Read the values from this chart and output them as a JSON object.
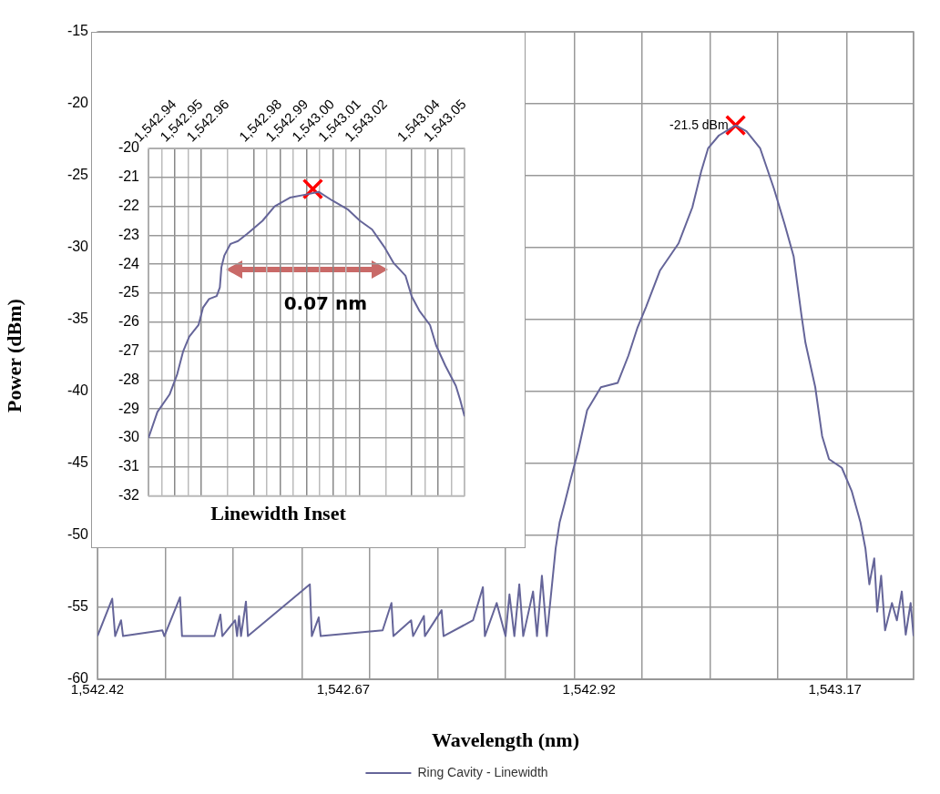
{
  "chart_data": [
    {
      "type": "line",
      "xlabel": "Wavelength (nm)",
      "ylabel": "Power (dBm)",
      "legend": "bottom",
      "grid": true,
      "marker": "none",
      "xlim": [
        1542.42,
        1543.25
      ],
      "xticks": [
        {
          "value": 1542.42,
          "label": "1,542.42"
        },
        {
          "value": 1542.489,
          "label": null
        },
        {
          "value": 1542.558,
          "label": null
        },
        {
          "value": 1542.628,
          "label": null
        },
        {
          "value": 1542.67,
          "label": "1,542.67"
        },
        {
          "value": 1542.697,
          "label": null
        },
        {
          "value": 1542.766,
          "label": null
        },
        {
          "value": 1542.835,
          "label": null
        },
        {
          "value": 1542.905,
          "label": null
        },
        {
          "value": 1542.92,
          "label": "1,542.92"
        },
        {
          "value": 1542.974,
          "label": null
        },
        {
          "value": 1543.043,
          "label": null
        },
        {
          "value": 1543.112,
          "label": null
        },
        {
          "value": 1543.17,
          "label": "1,543.17"
        },
        {
          "value": 1543.182,
          "label": null
        },
        {
          "value": 1543.25,
          "label": null
        }
      ],
      "ylim": [
        -60,
        -15
      ],
      "yticks": [
        -60,
        -55,
        -50,
        -45,
        -40,
        -35,
        -30,
        -25,
        -20,
        -15
      ],
      "annotations": [
        {
          "text": "-21.5 dBm",
          "x": 1543.069,
          "y": -21.5
        }
      ],
      "series": [
        {
          "name": "Ring Cavity - Linewidth",
          "color": "#656599",
          "x": [
            1542.42,
            1542.435,
            1542.438,
            1542.444,
            1542.446,
            1542.486,
            1542.488,
            1542.504,
            1542.506,
            1542.539,
            1542.545,
            1542.547,
            1542.56,
            1542.562,
            1542.564,
            1542.566,
            1542.571,
            1542.573,
            1542.636,
            1542.638,
            1542.645,
            1542.647,
            1542.71,
            1542.719,
            1542.721,
            1542.739,
            1542.741,
            1542.752,
            1542.753,
            1542.77,
            1542.772,
            1542.802,
            1542.812,
            1542.814,
            1542.826,
            1542.835,
            1542.839,
            1542.844,
            1542.849,
            1542.853,
            1542.863,
            1542.867,
            1542.872,
            1542.877,
            1542.886,
            1542.89,
            1542.895,
            1542.902,
            1542.909,
            1542.918,
            1542.932,
            1542.949,
            1542.96,
            1542.969,
            1542.978,
            1542.992,
            1543.011,
            1543.025,
            1543.034,
            1543.041,
            1543.052,
            1543.069,
            1543.08,
            1543.094,
            1543.108,
            1543.119,
            1543.128,
            1543.136,
            1543.14,
            1543.15,
            1543.157,
            1543.164,
            1543.177,
            1543.187,
            1543.196,
            1543.201,
            1543.205,
            1543.21,
            1543.213,
            1543.217,
            1543.221,
            1543.228,
            1543.233,
            1543.238,
            1543.242,
            1543.247,
            1543.25
          ],
          "values": [
            -57,
            -54.4,
            -57,
            -55.9,
            -57,
            -56.6,
            -57,
            -54.3,
            -57,
            -57,
            -55.5,
            -57,
            -55.9,
            -57,
            -55.6,
            -57,
            -54.6,
            -57,
            -53.4,
            -57,
            -55.7,
            -57,
            -56.6,
            -54.7,
            -57,
            -55.9,
            -57,
            -55.6,
            -57,
            -55.2,
            -57,
            -55.9,
            -53.6,
            -57,
            -54.7,
            -57,
            -54.1,
            -57,
            -53.4,
            -57,
            -53.9,
            -57,
            -52.8,
            -57,
            -50.9,
            -49.1,
            -47.8,
            -45.9,
            -44.1,
            -41.3,
            -39.7,
            -39.4,
            -37.5,
            -35.6,
            -34.1,
            -31.6,
            -29.7,
            -27.2,
            -24.7,
            -23.1,
            -22.2,
            -21.5,
            -21.9,
            -23.1,
            -25.9,
            -28.4,
            -30.6,
            -34.7,
            -36.6,
            -39.7,
            -43.1,
            -44.7,
            -45.3,
            -46.9,
            -49.1,
            -50.9,
            -53.4,
            -51.6,
            -55.3,
            -52.8,
            -56.6,
            -54.7,
            -55.9,
            -53.9,
            -56.9,
            -54.7,
            -57
          ]
        },
        {
          "type": "scatter",
          "marker": "cross",
          "color": "#ff0000",
          "x": [
            1543.069
          ],
          "values": [
            -21.5
          ]
        }
      ]
    },
    {
      "type": "line",
      "xlabel": "Linewidth Inset",
      "grid": true,
      "marker": "none",
      "xlim": [
        1542.94,
        1543.06
      ],
      "xticks": [
        {
          "value": 1542.94,
          "label": "1,542.94"
        },
        {
          "value": 1542.945,
          "label": null
        },
        {
          "value": 1542.95,
          "label": "1,542.95"
        },
        {
          "value": 1542.955,
          "label": null
        },
        {
          "value": 1542.96,
          "label": "1,542.96"
        },
        {
          "value": 1542.97,
          "label": null
        },
        {
          "value": 1542.98,
          "label": "1,542.98"
        },
        {
          "value": 1542.985,
          "label": null
        },
        {
          "value": 1542.99,
          "label": "1,542.99"
        },
        {
          "value": 1542.995,
          "label": null
        },
        {
          "value": 1543.0,
          "label": "1,543.00"
        },
        {
          "value": 1543.005,
          "label": null
        },
        {
          "value": 1543.01,
          "label": "1,543.01"
        },
        {
          "value": 1543.015,
          "label": null
        },
        {
          "value": 1543.02,
          "label": "1,543.02"
        },
        {
          "value": 1543.03,
          "label": null
        },
        {
          "value": 1543.04,
          "label": "1,543.04"
        },
        {
          "value": 1543.045,
          "label": null
        },
        {
          "value": 1543.05,
          "label": "1,543.05"
        },
        {
          "value": 1543.055,
          "label": null
        },
        {
          "value": 1543.06,
          "label": null
        }
      ],
      "ylim": [
        -32,
        -20
      ],
      "yticks": [
        -32,
        -31,
        -30,
        -29,
        -28,
        -27,
        -26,
        -25,
        -24,
        -23,
        -22,
        -21,
        -20
      ],
      "annotations": [
        "0.07 nm"
      ],
      "series": [
        {
          "color": "#656599",
          "x": [
            1542.94,
            1542.9434,
            1542.948,
            1542.9509,
            1542.9532,
            1542.9555,
            1542.959,
            1542.9607,
            1542.963,
            1542.9659,
            1542.9671,
            1542.9677,
            1542.9688,
            1542.9711,
            1542.974,
            1542.9775,
            1542.9833,
            1542.9879,
            1542.9937,
            1542.9994,
            1543.0046,
            1543.0098,
            1543.0156,
            1543.0203,
            1543.0249,
            1543.0295,
            1543.033,
            1543.0376,
            1543.0399,
            1543.0428,
            1543.0469,
            1543.0492,
            1543.0527,
            1543.0567,
            1543.0584,
            1543.06
          ],
          "values": [
            -30,
            -29.1,
            -28.5,
            -27.8,
            -27,
            -26.5,
            -26.1,
            -25.5,
            -25.2,
            -25.1,
            -24.8,
            -24.1,
            -23.7,
            -23.3,
            -23.2,
            -22.95,
            -22.5,
            -22,
            -21.7,
            -21.6,
            -21.5,
            -21.8,
            -22.1,
            -22.5,
            -22.8,
            -23.4,
            -23.95,
            -24.4,
            -25.1,
            -25.6,
            -26.1,
            -26.8,
            -27.5,
            -28.2,
            -28.7,
            -29.25
          ]
        },
        {
          "type": "scatter",
          "marker": "cross",
          "color": "#ff0000",
          "x": [
            1543.0024
          ],
          "values": [
            -21.4
          ]
        }
      ]
    }
  ]
}
